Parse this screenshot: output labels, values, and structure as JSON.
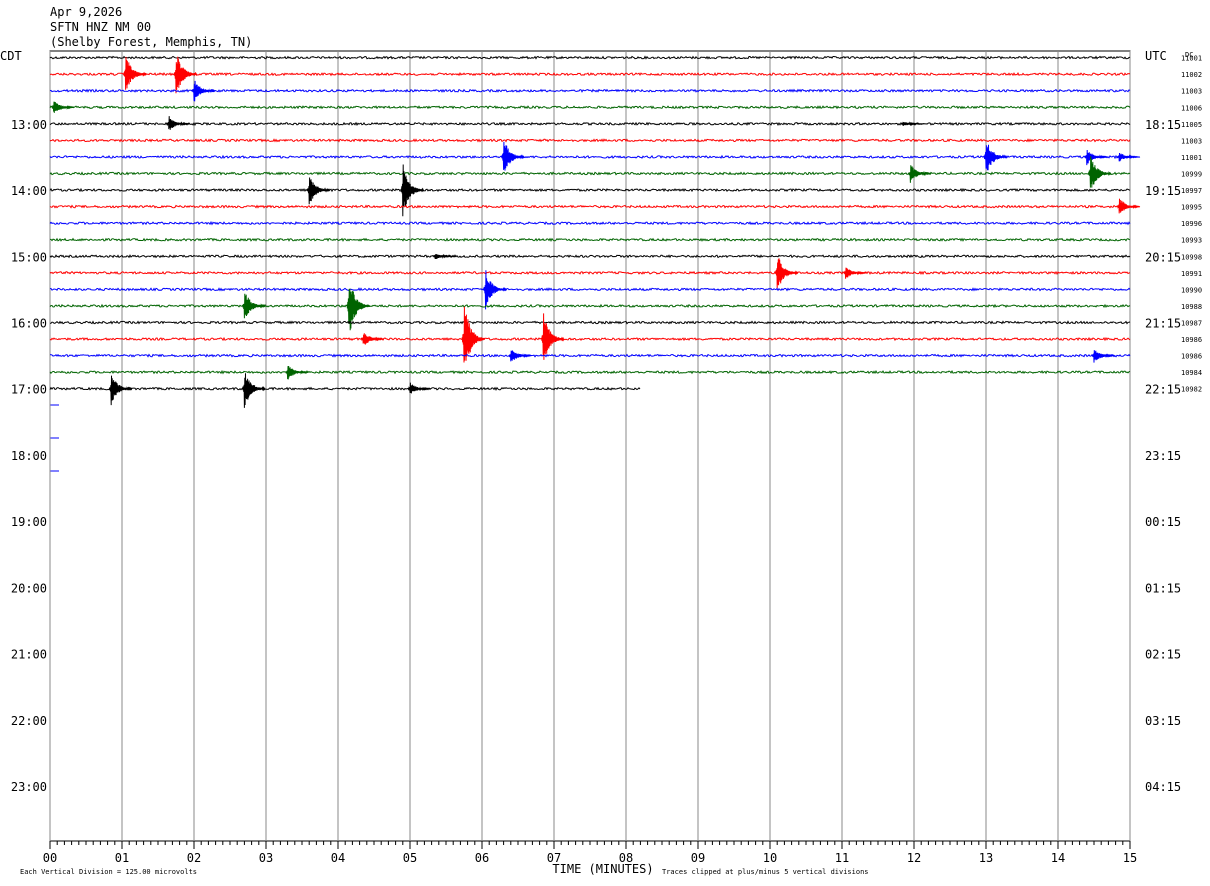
{
  "header": {
    "date": "Apr 9,2026",
    "station": "SFTN HNZ NM 00",
    "location": "(Shelby Forest, Memphis, TN)"
  },
  "chart_data": {
    "type": "helicorder",
    "left_axis_label": "CDT",
    "right_axis_label": "UTC",
    "dc_label": "DC",
    "xlabel": "TIME (MINUTES)",
    "xlim": [
      0,
      15
    ],
    "xticks": [
      {
        "value": 0,
        "label": "00"
      },
      {
        "value": 1,
        "label": "01"
      },
      {
        "value": 2,
        "label": "02"
      },
      {
        "value": 3,
        "label": "03"
      },
      {
        "value": 4,
        "label": "04"
      },
      {
        "value": 5,
        "label": "05"
      },
      {
        "value": 6,
        "label": "06"
      },
      {
        "value": 7,
        "label": "07"
      },
      {
        "value": 8,
        "label": "08"
      },
      {
        "value": 9,
        "label": "09"
      },
      {
        "value": 10,
        "label": "10"
      },
      {
        "value": 11,
        "label": "11"
      },
      {
        "value": 12,
        "label": "12"
      },
      {
        "value": 13,
        "label": "13"
      },
      {
        "value": 14,
        "label": "14"
      },
      {
        "value": 15,
        "label": "15"
      }
    ],
    "ylim": [
      11.9,
      23.83
    ],
    "yticks": [
      {
        "value": 13,
        "label": "13:00"
      },
      {
        "value": 14,
        "label": "14:00"
      },
      {
        "value": 15,
        "label": "15:00"
      },
      {
        "value": 16,
        "label": "16:00"
      },
      {
        "value": 17,
        "label": "17:00"
      },
      {
        "value": 18,
        "label": "18:00"
      },
      {
        "value": 19,
        "label": "19:00"
      },
      {
        "value": 20,
        "label": "20:00"
      },
      {
        "value": 21,
        "label": "21:00"
      },
      {
        "value": 22,
        "label": "22:00"
      },
      {
        "value": 23,
        "label": "23:00"
      }
    ],
    "y2ticks": [
      {
        "value": 13,
        "label": "18:15"
      },
      {
        "value": 14,
        "label": "19:15"
      },
      {
        "value": 15,
        "label": "20:15"
      },
      {
        "value": 16,
        "label": "21:15"
      },
      {
        "value": 17,
        "label": "22:15"
      },
      {
        "value": 18,
        "label": "23:15"
      },
      {
        "value": 19,
        "label": "00:15"
      },
      {
        "value": 20,
        "label": "01:15"
      },
      {
        "value": 21,
        "label": "02:15"
      },
      {
        "value": 22,
        "label": "03:15"
      },
      {
        "value": 23,
        "label": "04:15"
      }
    ],
    "row_step": 0.25,
    "first_row": 12,
    "dc_values": [
      11001,
      11002,
      11003,
      11006,
      11005,
      11003,
      11001,
      10999,
      10997,
      10995,
      10996,
      10993,
      10998,
      10991,
      10990,
      10988,
      10987,
      10986,
      10986,
      10984,
      10982
    ],
    "rows": [
      {
        "color": "#000000",
        "end": 15,
        "bursts": []
      },
      {
        "color": "#ff0000",
        "end": 15,
        "bursts": [
          [
            1.05,
            2.5
          ],
          [
            1.75,
            3
          ]
        ]
      },
      {
        "color": "#0000ff",
        "end": 15,
        "bursts": [
          [
            2.0,
            1.5
          ]
        ]
      },
      {
        "color": "#006400",
        "end": 15,
        "bursts": [
          [
            0.05,
            1
          ]
        ]
      },
      {
        "color": "#000000",
        "end": 15,
        "bursts": [
          [
            1.65,
            1
          ],
          [
            11.85,
            0.3
          ]
        ]
      },
      {
        "color": "#ff0000",
        "end": 15,
        "bursts": []
      },
      {
        "color": "#0000ff",
        "end": 15,
        "bursts": [
          [
            6.3,
            2.5
          ],
          [
            13.0,
            2.5
          ],
          [
            14.4,
            1
          ],
          [
            14.85,
            0.6
          ]
        ]
      },
      {
        "color": "#006400",
        "end": 15,
        "bursts": [
          [
            11.95,
            1.2
          ],
          [
            14.45,
            2.5
          ]
        ]
      },
      {
        "color": "#000000",
        "end": 15,
        "bursts": [
          [
            3.6,
            2
          ],
          [
            4.9,
            3.5
          ]
        ]
      },
      {
        "color": "#ff0000",
        "end": 15,
        "bursts": [
          [
            14.85,
            1.2
          ]
        ]
      },
      {
        "color": "#0000ff",
        "end": 15,
        "bursts": []
      },
      {
        "color": "#006400",
        "end": 15,
        "bursts": []
      },
      {
        "color": "#000000",
        "end": 15,
        "bursts": [
          [
            5.35,
            0.4
          ]
        ]
      },
      {
        "color": "#ff0000",
        "end": 15,
        "bursts": [
          [
            10.1,
            2.5
          ],
          [
            11.05,
            0.8
          ]
        ]
      },
      {
        "color": "#0000ff",
        "end": 15,
        "bursts": [
          [
            6.05,
            2.5
          ]
        ]
      },
      {
        "color": "#006400",
        "end": 15,
        "bursts": [
          [
            2.7,
            2
          ],
          [
            4.15,
            4
          ]
        ]
      },
      {
        "color": "#000000",
        "end": 15,
        "bursts": []
      },
      {
        "color": "#ff0000",
        "end": 15,
        "bursts": [
          [
            4.35,
            1
          ],
          [
            5.75,
            5
          ],
          [
            6.85,
            3.5
          ]
        ]
      },
      {
        "color": "#0000ff",
        "end": 15,
        "bursts": [
          [
            6.4,
            1
          ],
          [
            14.5,
            1
          ]
        ]
      },
      {
        "color": "#006400",
        "end": 15,
        "bursts": [
          [
            3.3,
            1
          ]
        ]
      },
      {
        "color": "#000000",
        "end": 8.2,
        "bursts": [
          [
            0.85,
            2
          ],
          [
            2.7,
            2.5
          ],
          [
            5.0,
            0.8
          ]
        ]
      }
    ],
    "division_note": "Each Vertical Division =  125.00 microvolts",
    "clip_note": "Traces clipped at plus/minus 5 vertical divisions"
  }
}
